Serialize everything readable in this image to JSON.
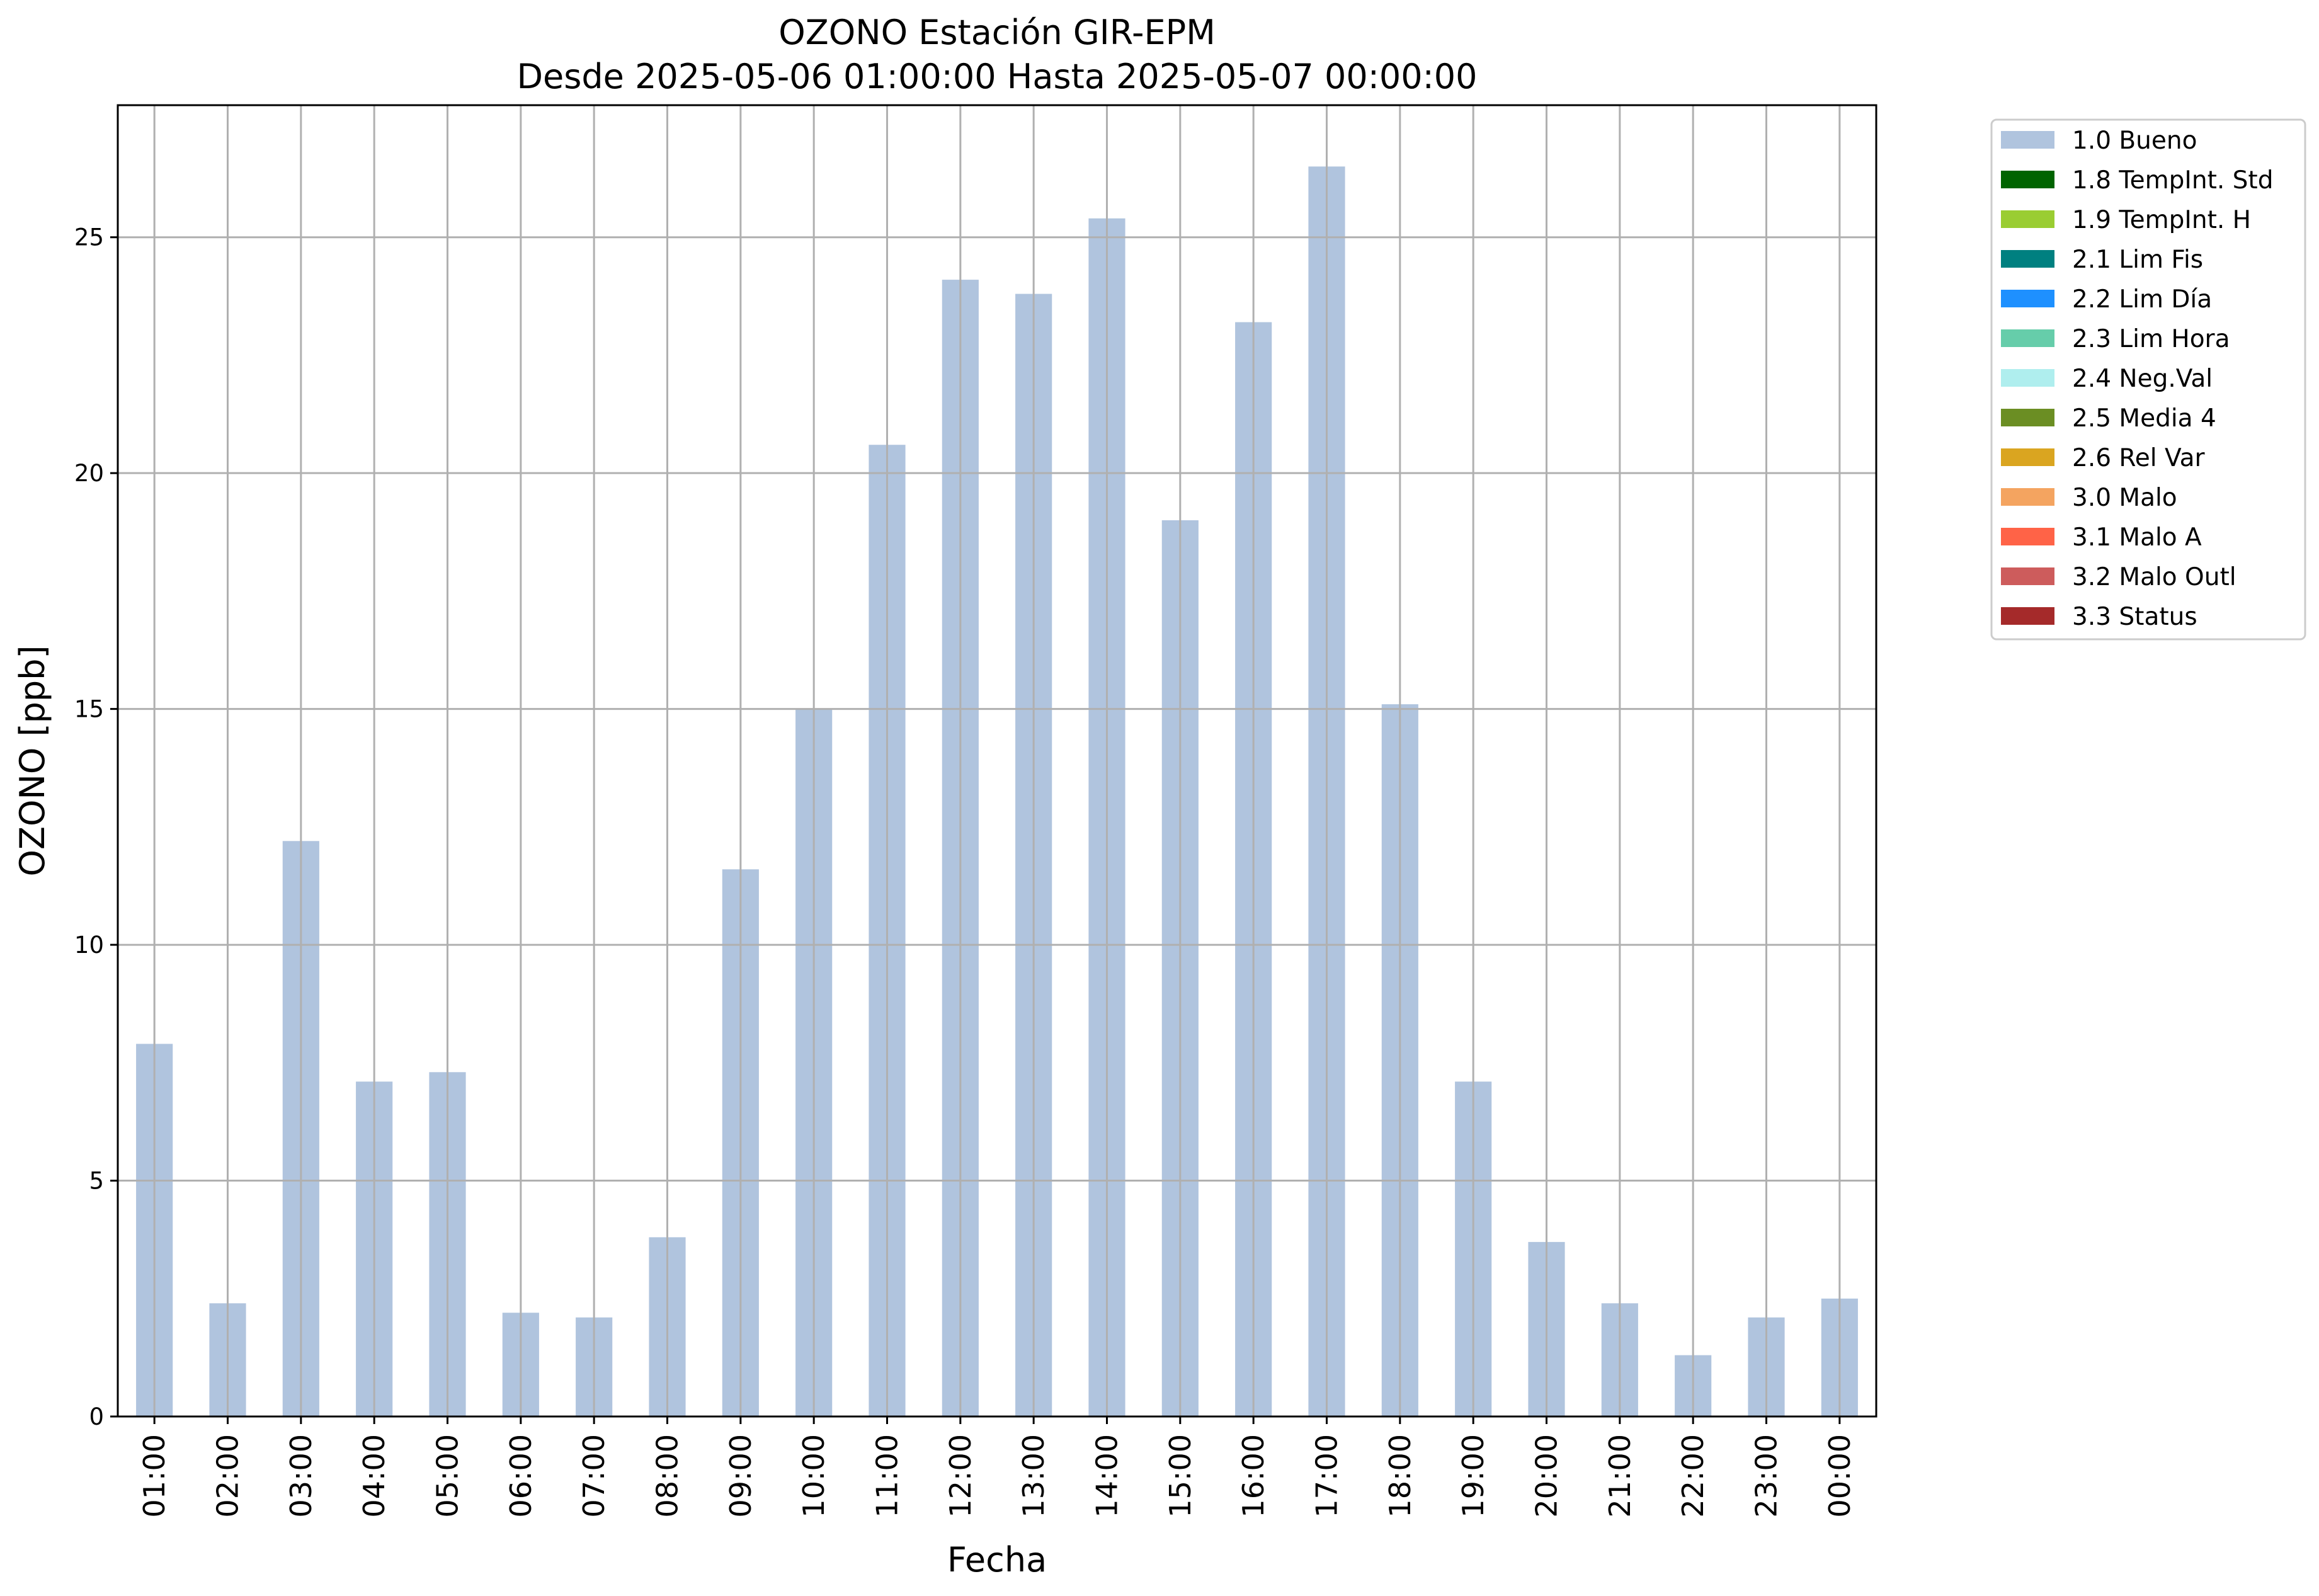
{
  "chart_data": {
    "type": "bar",
    "title": "OZONO Estación GIR-EPM",
    "subtitle": "Desde 2025-05-06 01:00:00 Hasta 2025-05-07 00:00:00",
    "xlabel": "Fecha",
    "ylabel": "OZONO [ppb]",
    "ylim": [
      0,
      27.8
    ],
    "yticks": [
      0,
      5,
      10,
      15,
      20,
      25
    ],
    "grid": true,
    "legend_position": "outside-top-right",
    "categories": [
      "01:00",
      "02:00",
      "03:00",
      "04:00",
      "05:00",
      "06:00",
      "07:00",
      "08:00",
      "09:00",
      "10:00",
      "11:00",
      "12:00",
      "13:00",
      "14:00",
      "15:00",
      "16:00",
      "17:00",
      "18:00",
      "19:00",
      "20:00",
      "21:00",
      "22:00",
      "23:00",
      "00:00"
    ],
    "series": [
      {
        "name": "1.0 Bueno",
        "color": "#b0c4de",
        "values": [
          7.9,
          2.4,
          12.2,
          7.1,
          7.3,
          2.2,
          2.1,
          3.8,
          11.6,
          15.0,
          20.6,
          24.1,
          23.8,
          25.4,
          19.0,
          23.2,
          26.5,
          15.1,
          7.1,
          3.7,
          2.4,
          1.3,
          2.1,
          2.5
        ]
      }
    ],
    "legend": [
      {
        "label": "1.0 Bueno",
        "color": "#b0c4de"
      },
      {
        "label": "1.8 TempInt. Std",
        "color": "#006400"
      },
      {
        "label": "1.9 TempInt. H",
        "color": "#9acd32"
      },
      {
        "label": "2.1 Lim Fis",
        "color": "#008080"
      },
      {
        "label": "2.2 Lim Día",
        "color": "#1e90ff"
      },
      {
        "label": "2.3 Lim Hora",
        "color": "#66cdaa"
      },
      {
        "label": "2.4 Neg.Val",
        "color": "#afeeee"
      },
      {
        "label": "2.5 Media 4",
        "color": "#6b8e23"
      },
      {
        "label": "2.6 Rel Var",
        "color": "#daa520"
      },
      {
        "label": "3.0 Malo",
        "color": "#f4a460"
      },
      {
        "label": "3.1 Malo A",
        "color": "#ff6347"
      },
      {
        "label": "3.2 Malo Outl",
        "color": "#cd5c5c"
      },
      {
        "label": "3.3 Status",
        "color": "#a52a2a"
      }
    ]
  }
}
